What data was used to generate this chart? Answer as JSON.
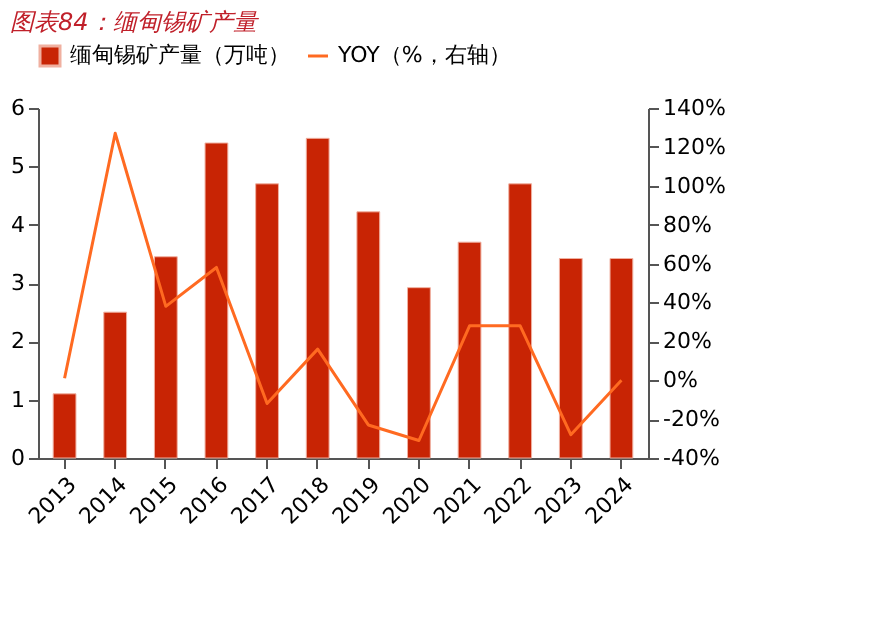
{
  "chart_data": {
    "type": "bar",
    "title": "图表84：缅甸锡矿产量",
    "categories": [
      "2013",
      "2014",
      "2015",
      "2016",
      "2017",
      "2018",
      "2019",
      "2020",
      "2021",
      "2022",
      "2023",
      "2024"
    ],
    "series": [
      {
        "name": "缅甸锡矿产量（万吨）",
        "color": "#c82404",
        "values": [
          1.1,
          2.5,
          3.45,
          5.4,
          4.7,
          5.48,
          4.22,
          2.92,
          3.7,
          4.7,
          3.42,
          3.42
        ]
      },
      {
        "name": "YOY（%，右轴）",
        "type": "line",
        "axis": "y2",
        "color": "#ff6a21",
        "values": [
          1,
          127,
          38,
          58,
          -12,
          16,
          -23,
          -31,
          28,
          28,
          -28,
          0
        ]
      }
    ],
    "ylim": [
      0,
      6
    ],
    "yticks": [
      0,
      1,
      2,
      3,
      4,
      5,
      6
    ],
    "y2lim": [
      -40,
      140
    ],
    "y2ticks": [
      {
        "value": -40,
        "label": "-40%"
      },
      {
        "value": -20,
        "label": "-20%"
      },
      {
        "value": 0,
        "label": "0%"
      },
      {
        "value": 20,
        "label": "20%"
      },
      {
        "value": 40,
        "label": "40%"
      },
      {
        "value": 60,
        "label": "60%"
      },
      {
        "value": 80,
        "label": "80%"
      },
      {
        "value": 100,
        "label": "100%"
      },
      {
        "value": 120,
        "label": "120%"
      },
      {
        "value": 140,
        "label": "140%"
      }
    ],
    "grid": false,
    "legend": "top",
    "line_style": "solid",
    "marker": "none"
  }
}
